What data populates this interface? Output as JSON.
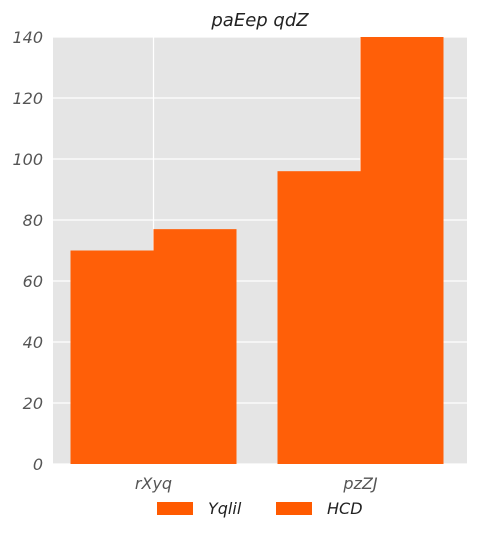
{
  "chart_data": {
    "type": "bar",
    "title": "paEep qdZ",
    "xlabel": "",
    "ylabel": "",
    "categories": [
      "rXyq",
      "pzZJ"
    ],
    "series": [
      {
        "name": "Yqlil",
        "values": [
          70,
          96
        ],
        "color": "#ff5a00"
      },
      {
        "name": "HCD",
        "values": [
          77,
          140
        ],
        "color": "#ff5a00"
      }
    ],
    "ylim": [
      0,
      140
    ],
    "yticks": [
      0,
      20,
      40,
      60,
      80,
      100,
      120,
      140
    ],
    "grid": true,
    "legend_position": "bottom-center",
    "plot_background": "#e5e5e5",
    "grid_color": "#ffffff"
  }
}
